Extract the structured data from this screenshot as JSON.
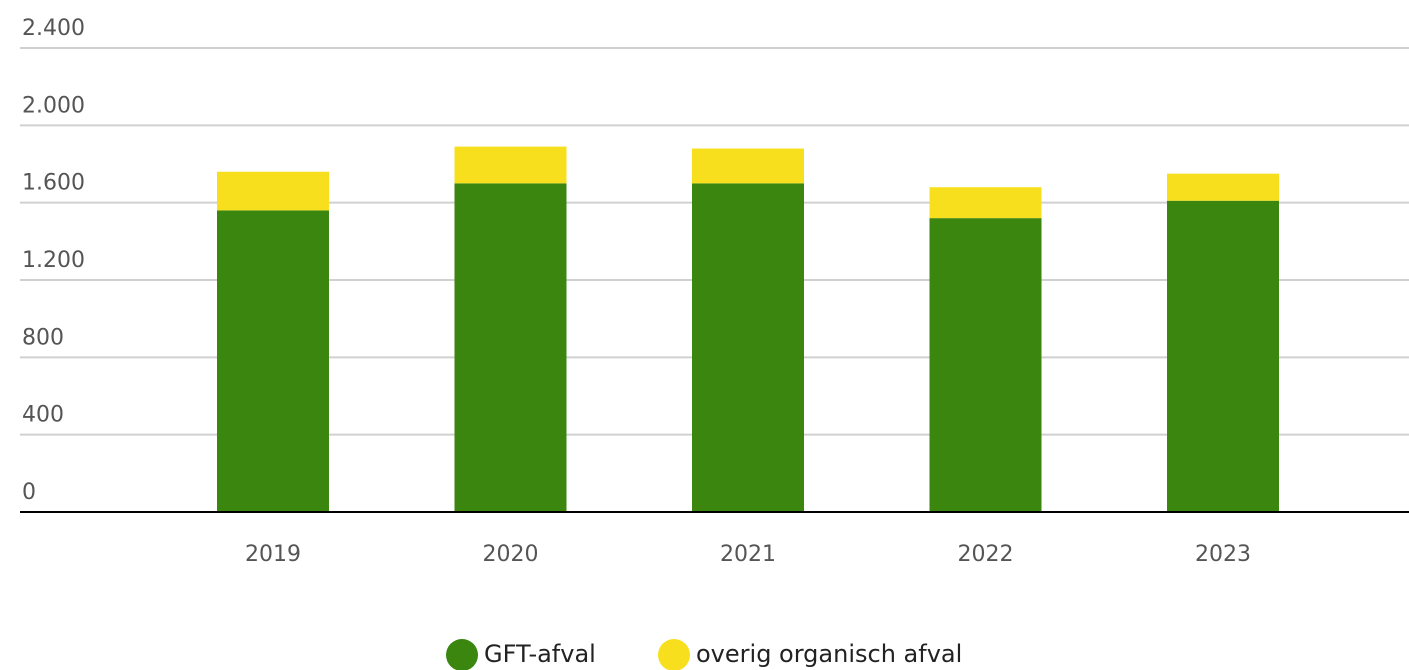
{
  "chart_data": {
    "type": "bar",
    "stacked": true,
    "categories": [
      "2019",
      "2020",
      "2021",
      "2022",
      "2023"
    ],
    "series": [
      {
        "name": "GFT-afval",
        "color": "#3a860f",
        "values": [
          1560,
          1700,
          1700,
          1520,
          1610
        ]
      },
      {
        "name": "overig organisch afval",
        "color": "#f7df1e",
        "values": [
          200,
          190,
          180,
          160,
          140
        ]
      }
    ],
    "ylim": [
      0,
      2400
    ],
    "yticks": [
      0,
      400,
      800,
      {
        "value": 1200,
        "label": "1.200"
      },
      {
        "value": 1600,
        "label": "1.600"
      },
      {
        "value": 2000,
        "label": "2.000"
      },
      {
        "value": 2400,
        "label": "2.400"
      }
    ],
    "grid": true,
    "legend": "bottom"
  }
}
